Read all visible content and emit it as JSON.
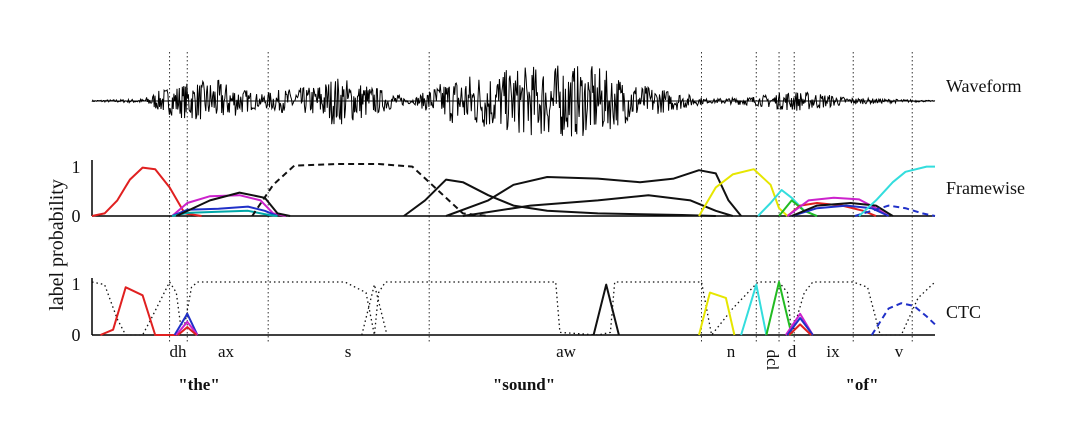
{
  "chart_data": {
    "type": "line",
    "title": "",
    "ylabel": "label probability",
    "ylim": [
      0,
      1
    ],
    "yticks": [
      "0",
      "1"
    ],
    "rows": [
      {
        "name": "Waveform",
        "label": "Waveform"
      },
      {
        "name": "Framewise",
        "label": "Framewise"
      },
      {
        "name": "CTC",
        "label": "CTC"
      }
    ],
    "phones": [
      {
        "label": "dh"
      },
      {
        "label": "ax"
      },
      {
        "label": "s"
      },
      {
        "label": "aw"
      },
      {
        "label": "n"
      },
      {
        "label": "dcl"
      },
      {
        "label": "d"
      },
      {
        "label": "ix"
      },
      {
        "label": "v"
      }
    ],
    "words": [
      {
        "label": "\"the\""
      },
      {
        "label": "\"sound\""
      },
      {
        "label": "\"of\""
      }
    ],
    "x_domain": [
      0,
      1000
    ],
    "boundaries": [
      92,
      113,
      209,
      400,
      723,
      788,
      815,
      833,
      903,
      973
    ],
    "framewise_series": [
      {
        "color": "#e02020",
        "style": "solid",
        "points": [
          [
            0,
            0
          ],
          [
            15,
            0.05
          ],
          [
            30,
            0.3
          ],
          [
            45,
            0.7
          ],
          [
            60,
            0.93
          ],
          [
            75,
            0.9
          ],
          [
            92,
            0.55
          ],
          [
            110,
            0.05
          ],
          [
            130,
            0
          ]
        ]
      },
      {
        "color": "#cc22cc",
        "style": "solid",
        "points": [
          [
            95,
            0
          ],
          [
            113,
            0.25
          ],
          [
            140,
            0.38
          ],
          [
            175,
            0.4
          ],
          [
            200,
            0.3
          ],
          [
            215,
            0.05
          ],
          [
            230,
            0
          ]
        ]
      },
      {
        "color": "#2030c8",
        "style": "solid",
        "points": [
          [
            95,
            0
          ],
          [
            113,
            0.12
          ],
          [
            150,
            0.14
          ],
          [
            185,
            0.18
          ],
          [
            205,
            0.1
          ],
          [
            220,
            0
          ]
        ]
      },
      {
        "color": "#00a8a8",
        "style": "solid",
        "points": [
          [
            95,
            0
          ],
          [
            113,
            0.06
          ],
          [
            150,
            0.08
          ],
          [
            185,
            0.1
          ],
          [
            210,
            0.02
          ],
          [
            220,
            0
          ]
        ]
      },
      {
        "color": "#111111",
        "style": "solid",
        "points": [
          [
            100,
            0
          ],
          [
            140,
            0.3
          ],
          [
            175,
            0.45
          ],
          [
            205,
            0.35
          ],
          [
            220,
            0.05
          ],
          [
            235,
            0
          ]
        ]
      },
      {
        "color": "#111111",
        "style": "dashed",
        "points": [
          [
            190,
            0
          ],
          [
            215,
            0.6
          ],
          [
            240,
            0.97
          ],
          [
            290,
            1.0
          ],
          [
            340,
            1.0
          ],
          [
            380,
            0.95
          ],
          [
            410,
            0.5
          ],
          [
            440,
            0.05
          ],
          [
            470,
            0
          ]
        ]
      },
      {
        "color": "#111111",
        "style": "solid",
        "points": [
          [
            370,
            0
          ],
          [
            395,
            0.3
          ],
          [
            420,
            0.7
          ],
          [
            440,
            0.65
          ],
          [
            470,
            0.4
          ],
          [
            500,
            0.2
          ],
          [
            540,
            0.1
          ],
          [
            600,
            0.05
          ],
          [
            700,
            0.02
          ],
          [
            740,
            0
          ]
        ]
      },
      {
        "color": "#111111",
        "style": "solid",
        "points": [
          [
            420,
            0
          ],
          [
            470,
            0.3
          ],
          [
            500,
            0.6
          ],
          [
            540,
            0.75
          ],
          [
            600,
            0.72
          ],
          [
            650,
            0.65
          ],
          [
            690,
            0.72
          ],
          [
            720,
            0.88
          ],
          [
            740,
            0.82
          ],
          [
            755,
            0.3
          ],
          [
            770,
            0
          ]
        ]
      },
      {
        "color": "#111111",
        "style": "solid",
        "points": [
          [
            440,
            0
          ],
          [
            520,
            0.2
          ],
          [
            600,
            0.3
          ],
          [
            660,
            0.4
          ],
          [
            710,
            0.3
          ],
          [
            740,
            0.1
          ],
          [
            760,
            0
          ]
        ]
      },
      {
        "color": "#e6e600",
        "style": "solid",
        "points": [
          [
            720,
            0
          ],
          [
            740,
            0.55
          ],
          [
            760,
            0.8
          ],
          [
            785,
            0.9
          ],
          [
            805,
            0.6
          ],
          [
            815,
            0.15
          ],
          [
            825,
            0
          ]
        ]
      },
      {
        "color": "#33dddd",
        "style": "solid",
        "points": [
          [
            790,
            0
          ],
          [
            805,
            0.25
          ],
          [
            818,
            0.5
          ],
          [
            830,
            0.35
          ],
          [
            845,
            0.1
          ],
          [
            860,
            0
          ]
        ]
      },
      {
        "color": "#22bb22",
        "style": "solid",
        "points": [
          [
            815,
            0
          ],
          [
            830,
            0.3
          ],
          [
            845,
            0.1
          ],
          [
            860,
            0
          ]
        ]
      },
      {
        "color": "#e02020",
        "style": "solid",
        "points": [
          [
            825,
            0
          ],
          [
            840,
            0.2
          ],
          [
            860,
            0.25
          ],
          [
            890,
            0.2
          ],
          [
            915,
            0.1
          ],
          [
            930,
            0
          ]
        ]
      },
      {
        "color": "#cc22cc",
        "style": "solid",
        "points": [
          [
            825,
            0
          ],
          [
            850,
            0.3
          ],
          [
            880,
            0.35
          ],
          [
            910,
            0.32
          ],
          [
            930,
            0.15
          ],
          [
            945,
            0
          ]
        ]
      },
      {
        "color": "#2030c8",
        "style": "solid",
        "points": [
          [
            830,
            0
          ],
          [
            860,
            0.15
          ],
          [
            895,
            0.2
          ],
          [
            925,
            0.15
          ],
          [
            945,
            0
          ]
        ]
      },
      {
        "color": "#111111",
        "style": "solid",
        "points": [
          [
            830,
            0
          ],
          [
            860,
            0.2
          ],
          [
            900,
            0.25
          ],
          [
            930,
            0.2
          ],
          [
            950,
            0
          ]
        ]
      },
      {
        "color": "#2030c8",
        "style": "dashed",
        "points": [
          [
            905,
            0
          ],
          [
            925,
            0.1
          ],
          [
            945,
            0.2
          ],
          [
            965,
            0.15
          ],
          [
            985,
            0.05
          ],
          [
            1000,
            0
          ]
        ]
      },
      {
        "color": "#33dddd",
        "style": "solid",
        "points": [
          [
            910,
            0
          ],
          [
            930,
            0.3
          ],
          [
            950,
            0.65
          ],
          [
            965,
            0.85
          ],
          [
            990,
            0.95
          ],
          [
            1000,
            0.95
          ]
        ]
      }
    ],
    "ctc_series": [
      {
        "color": "#111111",
        "style": "dotted",
        "points": [
          [
            0,
            1
          ],
          [
            15,
            0.95
          ],
          [
            30,
            0.3
          ],
          [
            40,
            0
          ],
          [
            60,
            0
          ],
          [
            70,
            0.3
          ],
          [
            92,
            1
          ],
          [
            100,
            0.8
          ],
          [
            105,
            0.2
          ],
          [
            110,
            0.2
          ],
          [
            118,
            0.9
          ],
          [
            125,
            1
          ],
          [
            209,
            1
          ],
          [
            300,
            1
          ],
          [
            325,
            0.8
          ],
          [
            335,
            0
          ],
          [
            340,
            0.8
          ],
          [
            348,
            1
          ],
          [
            550,
            1
          ],
          [
            555,
            0.05
          ],
          [
            600,
            0
          ],
          [
            615,
            0.05
          ],
          [
            620,
            1
          ],
          [
            723,
            1
          ],
          [
            735,
            0
          ],
          [
            760,
            0.5
          ],
          [
            790,
            1
          ],
          [
            815,
            1
          ],
          [
            825,
            0.8
          ],
          [
            830,
            0
          ],
          [
            845,
            0.8
          ],
          [
            855,
            1
          ],
          [
            903,
            1
          ],
          [
            920,
            0.9
          ],
          [
            935,
            0
          ],
          [
            960,
            0
          ],
          [
            980,
            0.7
          ],
          [
            1000,
            1
          ]
        ]
      },
      {
        "color": "#111111",
        "style": "dotted",
        "points": [
          [
            320,
            0
          ],
          [
            335,
            0.95
          ],
          [
            350,
            0
          ]
        ]
      },
      {
        "color": "#e02020",
        "style": "solid",
        "points": [
          [
            10,
            0
          ],
          [
            25,
            0.1
          ],
          [
            40,
            0.9
          ],
          [
            60,
            0.75
          ],
          [
            75,
            0
          ],
          [
            100,
            0
          ]
        ]
      },
      {
        "color": "#2030c8",
        "style": "solid",
        "points": [
          [
            98,
            0
          ],
          [
            113,
            0.4
          ],
          [
            125,
            0
          ]
        ]
      },
      {
        "color": "#cc22cc",
        "style": "solid",
        "points": [
          [
            100,
            0
          ],
          [
            113,
            0.25
          ],
          [
            125,
            0
          ]
        ]
      },
      {
        "color": "#e02020",
        "style": "solid",
        "points": [
          [
            102,
            0
          ],
          [
            113,
            0.15
          ],
          [
            124,
            0
          ]
        ]
      },
      {
        "color": "#111111",
        "style": "solid",
        "points": [
          [
            595,
            0
          ],
          [
            610,
            0.95
          ],
          [
            625,
            0
          ]
        ]
      },
      {
        "color": "#e6e600",
        "style": "solid",
        "points": [
          [
            720,
            0
          ],
          [
            733,
            0.8
          ],
          [
            752,
            0.7
          ],
          [
            762,
            0
          ]
        ]
      },
      {
        "color": "#33dddd",
        "style": "solid",
        "points": [
          [
            770,
            0
          ],
          [
            788,
            0.95
          ],
          [
            800,
            0
          ]
        ]
      },
      {
        "color": "#22bb22",
        "style": "solid",
        "points": [
          [
            800,
            0
          ],
          [
            815,
            1
          ],
          [
            830,
            0
          ]
        ]
      },
      {
        "color": "#cc22cc",
        "style": "solid",
        "points": [
          [
            823,
            0
          ],
          [
            840,
            0.4
          ],
          [
            855,
            0
          ]
        ]
      },
      {
        "color": "#2030c8",
        "style": "solid",
        "points": [
          [
            825,
            0
          ],
          [
            840,
            0.32
          ],
          [
            855,
            0
          ]
        ]
      },
      {
        "color": "#e02020",
        "style": "solid",
        "points": [
          [
            827,
            0
          ],
          [
            840,
            0.2
          ],
          [
            853,
            0
          ]
        ]
      },
      {
        "color": "#2030c8",
        "style": "dashed",
        "points": [
          [
            925,
            0
          ],
          [
            945,
            0.5
          ],
          [
            960,
            0.6
          ],
          [
            975,
            0.55
          ],
          [
            990,
            0.35
          ],
          [
            1000,
            0.2
          ]
        ]
      }
    ]
  }
}
